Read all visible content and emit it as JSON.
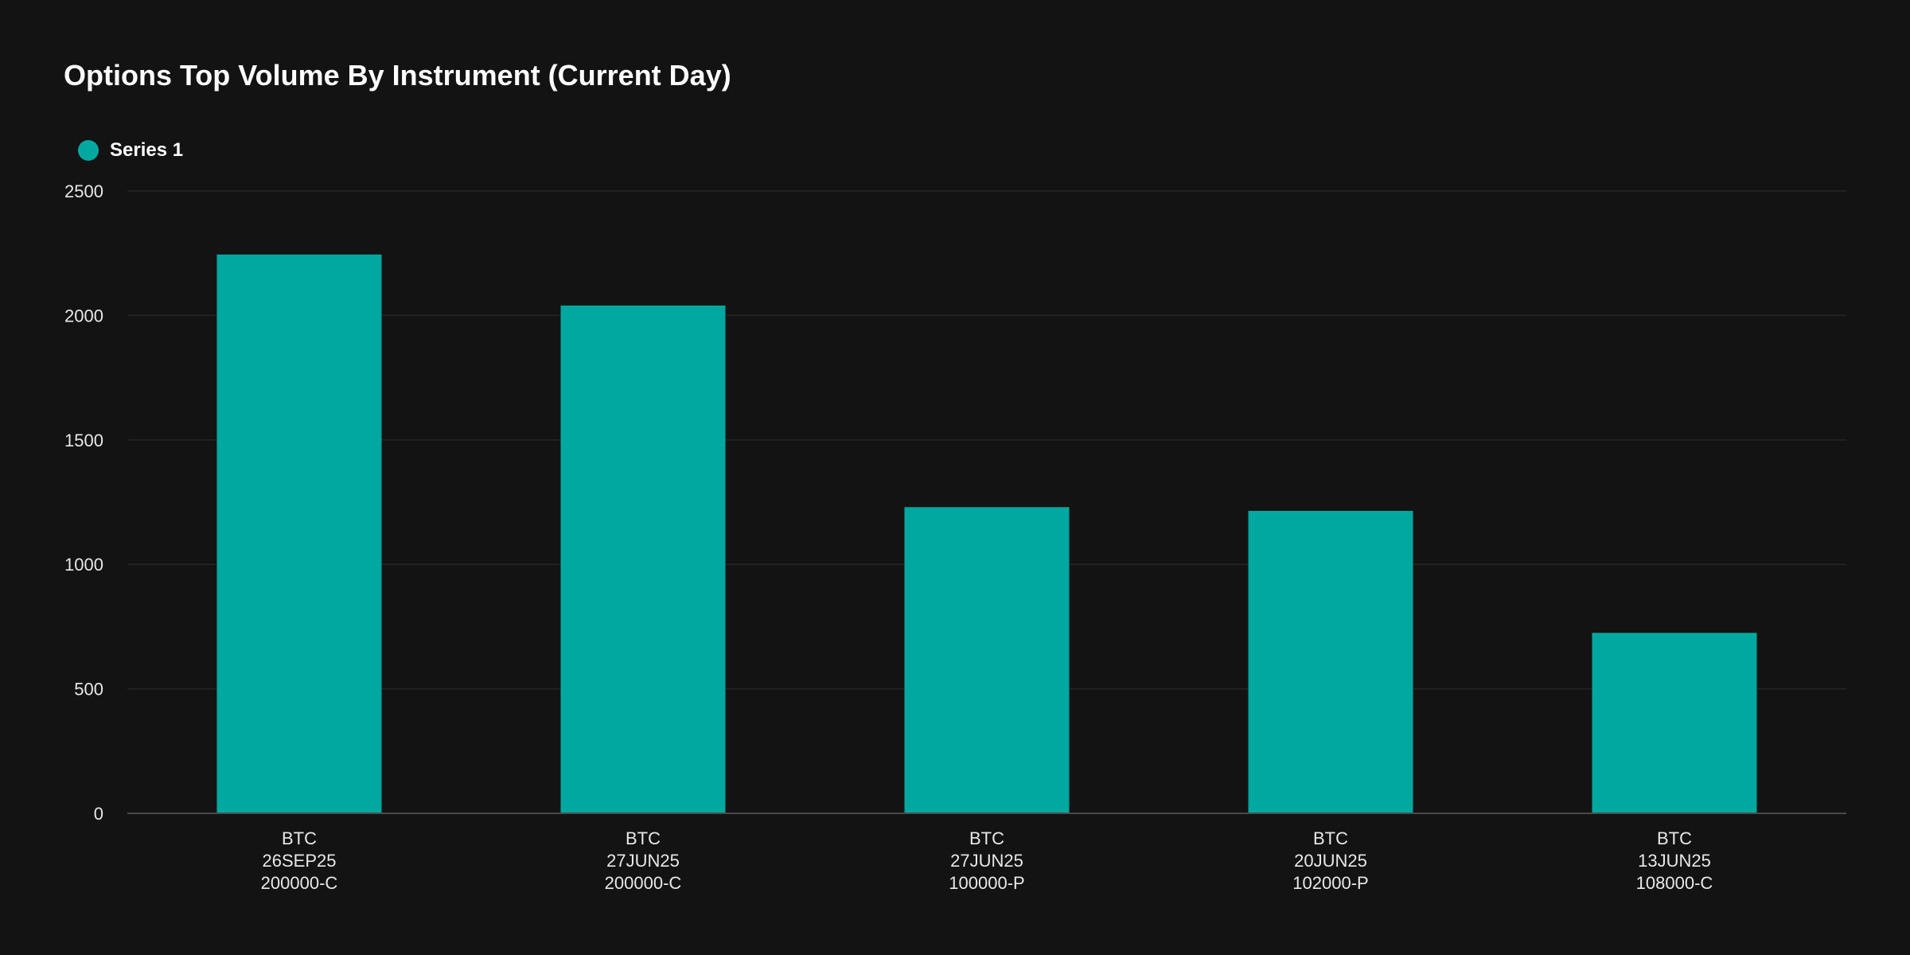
{
  "chart_data": {
    "type": "bar",
    "title": "Options Top Volume By Instrument (Current Day)",
    "xlabel": "",
    "ylabel": "",
    "ylim": [
      0,
      2500
    ],
    "yticks": [
      0,
      500,
      1000,
      1500,
      2000,
      2500
    ],
    "grid": true,
    "legend_position": "top-left",
    "categories": [
      [
        "BTC",
        "26SEP25",
        "200000-C"
      ],
      [
        "BTC",
        "27JUN25",
        "200000-C"
      ],
      [
        "BTC",
        "27JUN25",
        "100000-P"
      ],
      [
        "BTC",
        "20JUN25",
        "102000-P"
      ],
      [
        "BTC",
        "13JUN25",
        "108000-C"
      ]
    ],
    "series": [
      {
        "name": "Series 1",
        "color": "#00a8a0",
        "values": [
          2245,
          2040,
          1230,
          1215,
          725
        ]
      }
    ]
  },
  "colors": {
    "background": "#131313",
    "gridline": "#262626",
    "axis": "#4a4a4a",
    "text": "#e8e8e8"
  }
}
